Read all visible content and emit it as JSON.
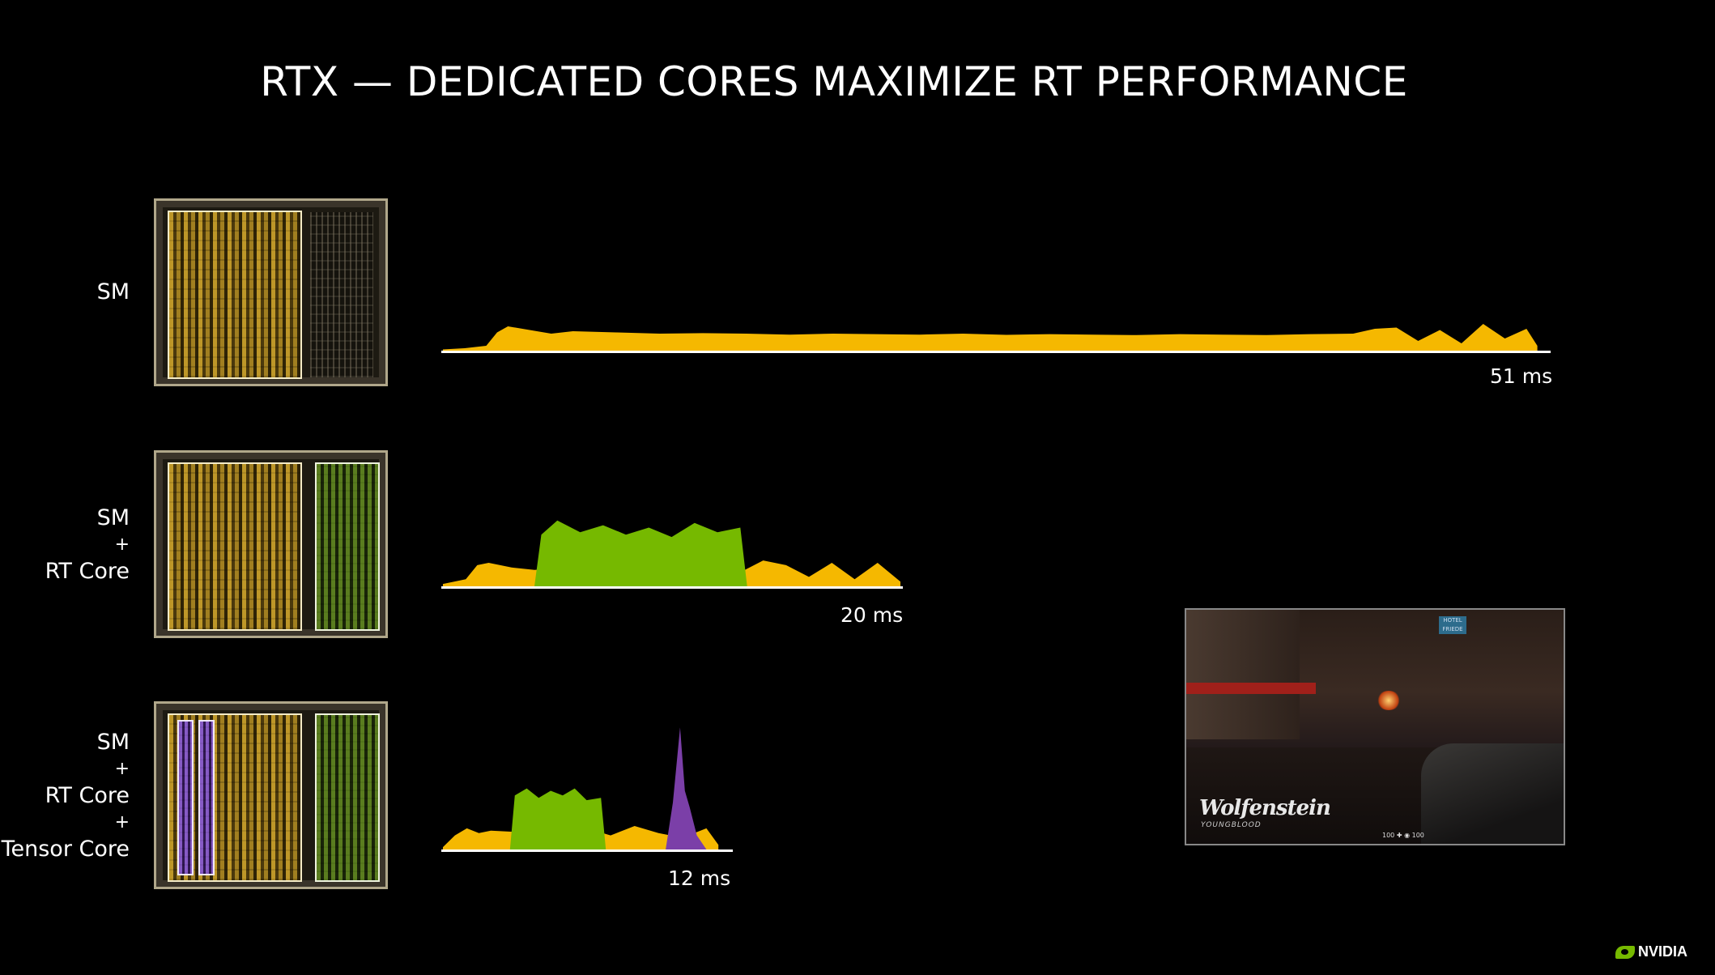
{
  "title": "RTX — DEDICATED CORES MAXIMIZE RT PERFORMANCE",
  "rows": [
    {
      "label_lines": [
        "SM"
      ],
      "timing": "51 ms"
    },
    {
      "label_lines": [
        "SM",
        "+",
        "RT Core"
      ],
      "timing": "20 ms"
    },
    {
      "label_lines": [
        "SM",
        "+",
        "RT Core",
        "+",
        "Tensor Core"
      ],
      "timing": "12 ms"
    }
  ],
  "screenshot": {
    "game_title": "Wolfenstein",
    "game_subtitle": "YOUNGBLOOD",
    "sign_text": "HOTEL FRIEDE",
    "hud_left": "100",
    "hud_right": "100"
  },
  "logo": {
    "text": "NVIDIA",
    "color": "#76b900"
  },
  "colors": {
    "sm": "#f5b800",
    "rt_core": "#76b900",
    "tensor_core": "#7b3fa8",
    "axis": "#ffffff"
  },
  "chart_data": [
    {
      "type": "area",
      "title": "SM",
      "x_unit": "ms",
      "xlim": [
        0,
        51
      ],
      "series": [
        {
          "name": "SM",
          "color": "#f5b800",
          "x": [
            0,
            1,
            2,
            2.5,
            3,
            4,
            5,
            6,
            8,
            10,
            12,
            14,
            16,
            18,
            20,
            22,
            24,
            26,
            28,
            30,
            32,
            34,
            36,
            38,
            40,
            42,
            43,
            44,
            45,
            46,
            47,
            48,
            49,
            50,
            50.5
          ],
          "values": [
            0.05,
            0.1,
            0.2,
            0.75,
            1.0,
            0.85,
            0.7,
            0.8,
            0.75,
            0.7,
            0.72,
            0.7,
            0.66,
            0.7,
            0.68,
            0.66,
            0.7,
            0.65,
            0.68,
            0.66,
            0.64,
            0.68,
            0.66,
            0.64,
            0.68,
            0.7,
            0.9,
            0.95,
            0.4,
            0.85,
            0.3,
            1.1,
            0.5,
            0.9,
            0.2
          ]
        }
      ]
    },
    {
      "type": "area",
      "title": "SM + RT Core",
      "x_unit": "ms",
      "xlim": [
        0,
        20
      ],
      "series": [
        {
          "name": "SM",
          "color": "#f5b800",
          "x": [
            0,
            1,
            1.5,
            2,
            3,
            4,
            5,
            6,
            7,
            8,
            9,
            10,
            11,
            12,
            13,
            14,
            15,
            16,
            17,
            18,
            19,
            20
          ],
          "values": [
            0.1,
            0.3,
            0.9,
            1.0,
            0.8,
            0.7,
            0.75,
            0.8,
            0.7,
            0.72,
            0.78,
            0.7,
            0.8,
            0.9,
            0.6,
            1.1,
            0.9,
            0.4,
            1.0,
            0.3,
            1.0,
            0.2
          ]
        },
        {
          "name": "RT Core",
          "color": "#76b900",
          "x": [
            4,
            4.3,
            5,
            6,
            7,
            8,
            9,
            10,
            11,
            12,
            13,
            13.3
          ],
          "values": [
            0,
            2.2,
            2.8,
            2.3,
            2.6,
            2.2,
            2.5,
            2.1,
            2.7,
            2.3,
            2.5,
            0
          ]
        }
      ]
    },
    {
      "type": "area",
      "title": "SM + RT Core + Tensor Core",
      "x_unit": "ms",
      "xlim": [
        0,
        12
      ],
      "series": [
        {
          "name": "SM",
          "color": "#f5b800",
          "x": [
            0,
            0.5,
            1,
            1.5,
            2,
            3,
            4,
            5,
            6,
            7,
            8,
            9,
            10,
            11,
            11.5
          ],
          "values": [
            0.1,
            0.6,
            0.9,
            0.7,
            0.8,
            0.75,
            0.7,
            0.8,
            0.9,
            0.6,
            1.0,
            0.7,
            0.5,
            0.9,
            0.2
          ]
        },
        {
          "name": "RT Core",
          "color": "#76b900",
          "x": [
            2.8,
            3,
            3.5,
            4,
            4.5,
            5,
            5.5,
            6,
            6.6,
            6.8
          ],
          "values": [
            0,
            2.3,
            2.6,
            2.2,
            2.5,
            2.3,
            2.6,
            2.1,
            2.2,
            0
          ]
        },
        {
          "name": "Tensor Core",
          "color": "#7b3fa8",
          "x": [
            9.3,
            9.6,
            9.9,
            10.1,
            10.3,
            10.6,
            11.0
          ],
          "values": [
            0,
            2.0,
            5.2,
            2.5,
            1.8,
            0.6,
            0
          ]
        }
      ]
    }
  ]
}
